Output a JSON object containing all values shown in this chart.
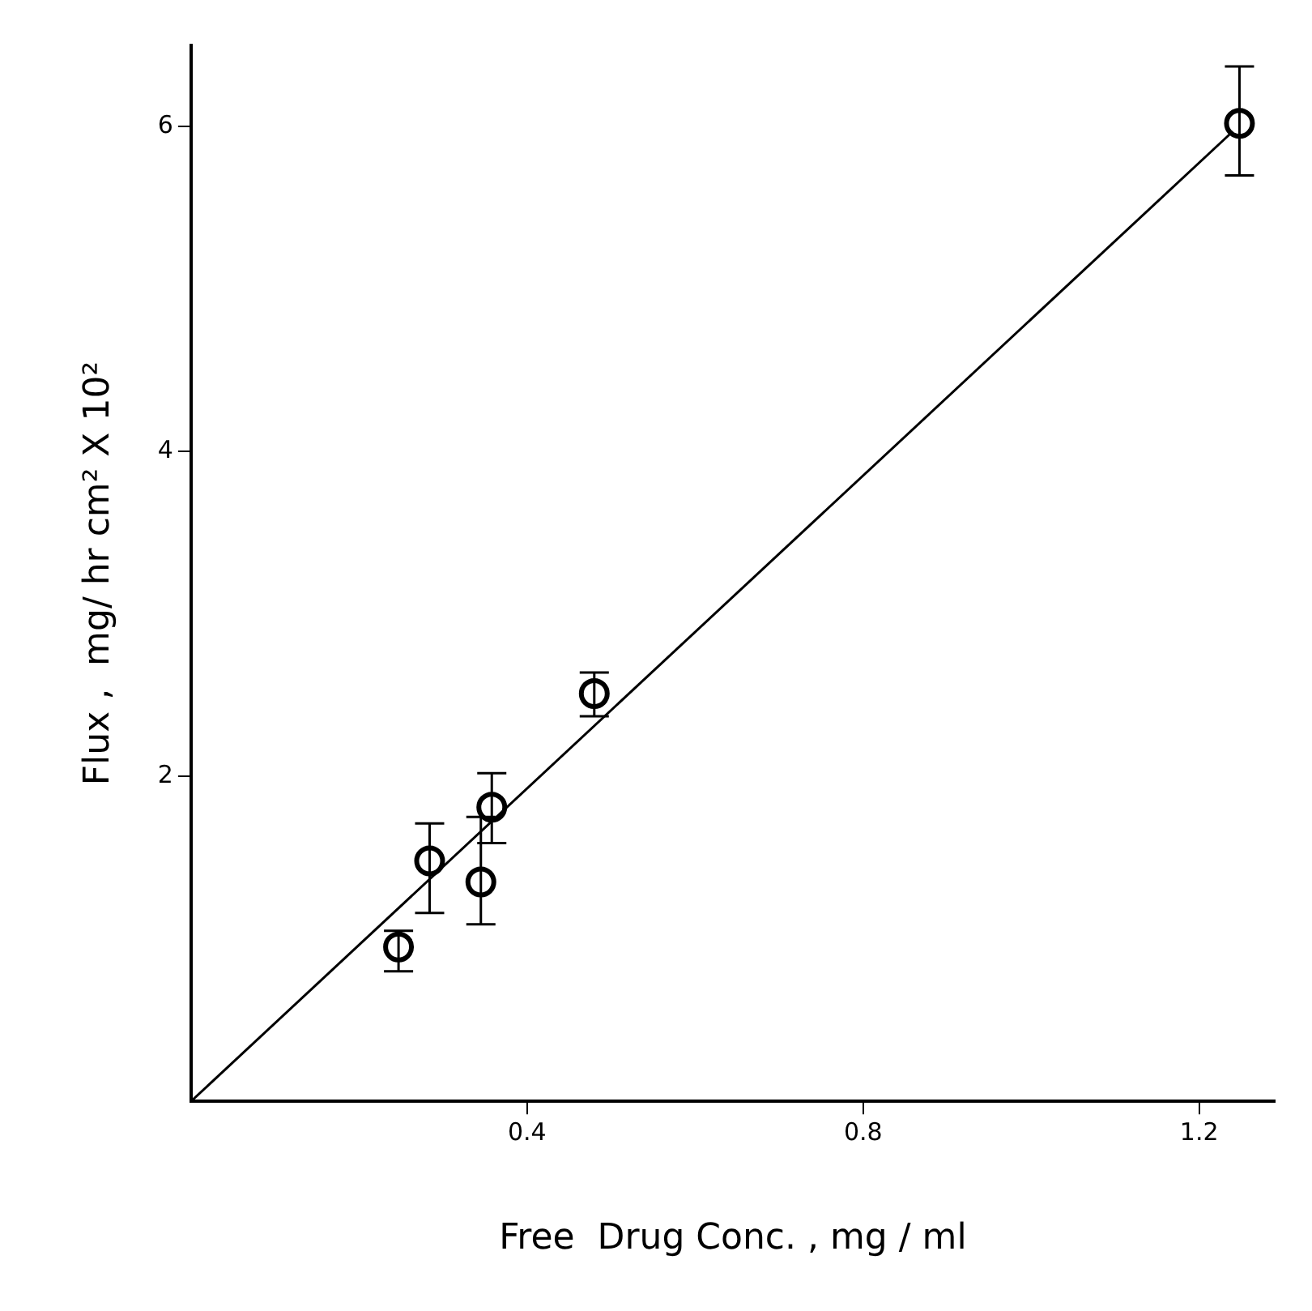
{
  "chart_data": {
    "type": "scatter",
    "xlabel": "Free  Drug Conc. , mg / ml",
    "ylabel": "Flux ,  mg/ hr cm² X 10²",
    "xlim": [
      0,
      1.29
    ],
    "ylim": [
      0,
      6.5
    ],
    "xticks": [
      0.4,
      0.8,
      1.2
    ],
    "yticks": [
      2,
      4,
      6
    ],
    "grid": false,
    "legend": false,
    "marker": "circle",
    "series": [
      {
        "color": "#000000",
        "x": [
          0.247,
          0.284,
          0.345,
          0.358,
          0.48,
          1.248
        ],
        "values": [
          0.95,
          1.48,
          1.35,
          1.81,
          2.51,
          6.02
        ],
        "errors": [
          [
            0.8,
            1.05
          ],
          [
            1.16,
            1.71
          ],
          [
            1.09,
            1.75
          ],
          [
            1.59,
            2.02
          ],
          [
            2.37,
            2.64
          ],
          [
            5.7,
            6.37
          ]
        ]
      },
      {
        "type": "line",
        "color": "#000000",
        "x": [
          0,
          1.24
        ],
        "values": [
          0,
          5.97
        ],
        "marker": "none",
        "line_style": "solid"
      }
    ]
  }
}
